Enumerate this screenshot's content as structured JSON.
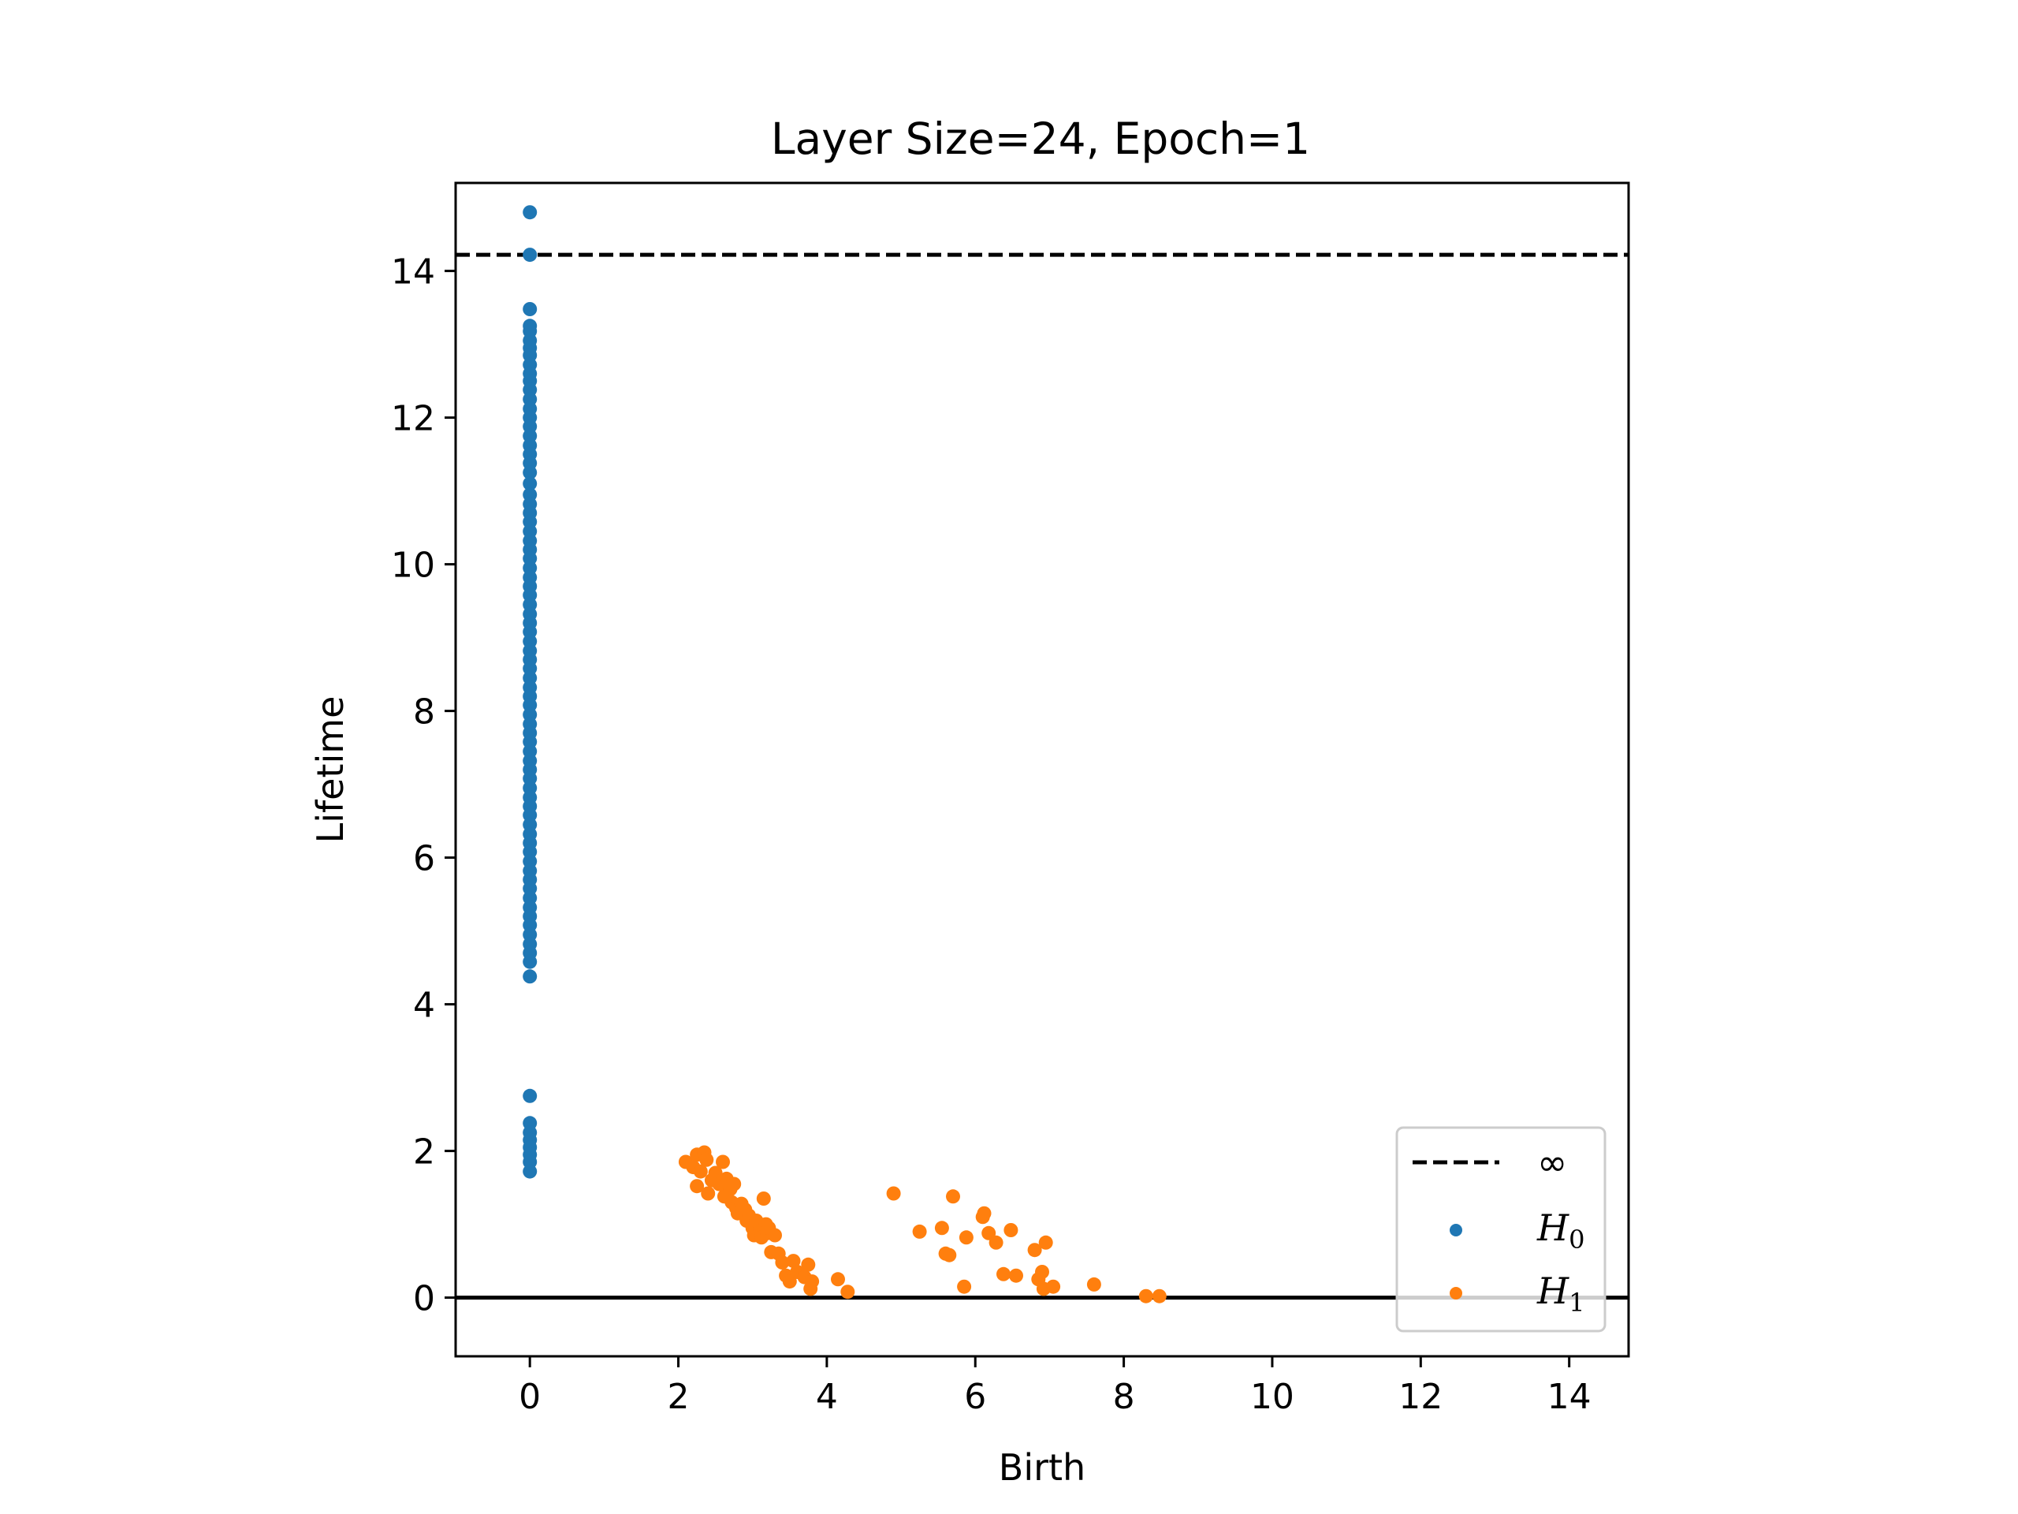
{
  "chart_data": {
    "type": "scatter",
    "title": "Layer Size=24, Epoch=1",
    "xlabel": "Birth",
    "ylabel": "Lifetime",
    "xlim": [
      -1.0,
      14.8
    ],
    "ylim": [
      -0.8,
      15.2
    ],
    "xticks": [
      0,
      2,
      4,
      6,
      8,
      10,
      12,
      14
    ],
    "yticks": [
      0,
      2,
      4,
      6,
      8,
      10,
      12,
      14
    ],
    "infinity_line": {
      "y": 14.22,
      "label": "∞",
      "style": "dashed",
      "color": "#000000"
    },
    "zero_line": {
      "y": 0,
      "style": "solid",
      "color": "#000000"
    },
    "legend": {
      "position": "lower-right",
      "entries": [
        {
          "label": "∞",
          "kind": "line"
        },
        {
          "label": "H",
          "subscript": "0",
          "kind": "point",
          "color": "#1f77b4"
        },
        {
          "label": "H",
          "subscript": "1",
          "kind": "point",
          "color": "#ff7f0e"
        }
      ]
    },
    "series": [
      {
        "name": "H0",
        "color": "#1f77b4",
        "points": [
          [
            0,
            14.8
          ],
          [
            0,
            14.22
          ],
          [
            0,
            13.48
          ],
          [
            0,
            13.25
          ],
          [
            0,
            13.18
          ],
          [
            0,
            13.05
          ],
          [
            0,
            12.95
          ],
          [
            0,
            12.85
          ],
          [
            0,
            12.72
          ],
          [
            0,
            12.6
          ],
          [
            0,
            12.5
          ],
          [
            0,
            12.38
          ],
          [
            0,
            12.25
          ],
          [
            0,
            12.12
          ],
          [
            0,
            12.0
          ],
          [
            0,
            11.88
          ],
          [
            0,
            11.75
          ],
          [
            0,
            11.62
          ],
          [
            0,
            11.5
          ],
          [
            0,
            11.38
          ],
          [
            0,
            11.25
          ],
          [
            0,
            11.1
          ],
          [
            0,
            10.95
          ],
          [
            0,
            10.82
          ],
          [
            0,
            10.7
          ],
          [
            0,
            10.58
          ],
          [
            0,
            10.45
          ],
          [
            0,
            10.32
          ],
          [
            0,
            10.2
          ],
          [
            0,
            10.08
          ],
          [
            0,
            9.95
          ],
          [
            0,
            9.82
          ],
          [
            0,
            9.7
          ],
          [
            0,
            9.58
          ],
          [
            0,
            9.45
          ],
          [
            0,
            9.32
          ],
          [
            0,
            9.2
          ],
          [
            0,
            9.08
          ],
          [
            0,
            8.95
          ],
          [
            0,
            8.82
          ],
          [
            0,
            8.7
          ],
          [
            0,
            8.58
          ],
          [
            0,
            8.45
          ],
          [
            0,
            8.32
          ],
          [
            0,
            8.2
          ],
          [
            0,
            8.08
          ],
          [
            0,
            7.95
          ],
          [
            0,
            7.82
          ],
          [
            0,
            7.7
          ],
          [
            0,
            7.58
          ],
          [
            0,
            7.45
          ],
          [
            0,
            7.32
          ],
          [
            0,
            7.2
          ],
          [
            0,
            7.08
          ],
          [
            0,
            6.95
          ],
          [
            0,
            6.82
          ],
          [
            0,
            6.7
          ],
          [
            0,
            6.58
          ],
          [
            0,
            6.45
          ],
          [
            0,
            6.32
          ],
          [
            0,
            6.2
          ],
          [
            0,
            6.08
          ],
          [
            0,
            5.95
          ],
          [
            0,
            5.82
          ],
          [
            0,
            5.7
          ],
          [
            0,
            5.58
          ],
          [
            0,
            5.45
          ],
          [
            0,
            5.32
          ],
          [
            0,
            5.2
          ],
          [
            0,
            5.08
          ],
          [
            0,
            4.95
          ],
          [
            0,
            4.82
          ],
          [
            0,
            4.7
          ],
          [
            0,
            4.58
          ],
          [
            0,
            4.38
          ],
          [
            0,
            2.75
          ],
          [
            0,
            2.38
          ],
          [
            0,
            2.25
          ],
          [
            0,
            2.15
          ],
          [
            0,
            2.05
          ],
          [
            0,
            1.95
          ],
          [
            0,
            1.85
          ],
          [
            0,
            1.72
          ]
        ]
      },
      {
        "name": "H1",
        "color": "#ff7f0e",
        "points": [
          [
            2.1,
            1.85
          ],
          [
            2.2,
            1.78
          ],
          [
            2.25,
            1.95
          ],
          [
            2.3,
            1.72
          ],
          [
            2.35,
            1.98
          ],
          [
            2.38,
            1.88
          ],
          [
            2.25,
            1.52
          ],
          [
            2.4,
            1.42
          ],
          [
            2.45,
            1.6
          ],
          [
            2.5,
            1.7
          ],
          [
            2.55,
            1.55
          ],
          [
            2.6,
            1.85
          ],
          [
            2.62,
            1.38
          ],
          [
            2.65,
            1.62
          ],
          [
            2.7,
            1.48
          ],
          [
            2.72,
            1.3
          ],
          [
            2.75,
            1.55
          ],
          [
            2.78,
            1.22
          ],
          [
            2.8,
            1.15
          ],
          [
            2.85,
            1.28
          ],
          [
            2.9,
            1.2
          ],
          [
            2.92,
            1.05
          ],
          [
            2.95,
            1.12
          ],
          [
            3.0,
            0.95
          ],
          [
            3.02,
            0.85
          ],
          [
            3.05,
            1.05
          ],
          [
            3.1,
            0.92
          ],
          [
            3.12,
            0.82
          ],
          [
            3.15,
            1.35
          ],
          [
            3.18,
            1.0
          ],
          [
            3.2,
            0.88
          ],
          [
            3.22,
            0.95
          ],
          [
            3.25,
            0.62
          ],
          [
            3.3,
            0.85
          ],
          [
            3.35,
            0.6
          ],
          [
            3.4,
            0.48
          ],
          [
            3.45,
            0.3
          ],
          [
            3.5,
            0.22
          ],
          [
            3.55,
            0.5
          ],
          [
            3.6,
            0.35
          ],
          [
            3.7,
            0.28
          ],
          [
            3.75,
            0.45
          ],
          [
            3.78,
            0.12
          ],
          [
            3.8,
            0.22
          ],
          [
            4.15,
            0.25
          ],
          [
            4.28,
            0.08
          ],
          [
            4.9,
            1.42
          ],
          [
            5.25,
            0.9
          ],
          [
            5.55,
            0.95
          ],
          [
            5.6,
            0.6
          ],
          [
            5.65,
            0.58
          ],
          [
            5.7,
            1.38
          ],
          [
            5.85,
            0.15
          ],
          [
            5.88,
            0.82
          ],
          [
            6.1,
            1.1
          ],
          [
            6.12,
            1.15
          ],
          [
            6.18,
            0.88
          ],
          [
            6.28,
            0.75
          ],
          [
            6.38,
            0.32
          ],
          [
            6.48,
            0.92
          ],
          [
            6.55,
            0.3
          ],
          [
            6.8,
            0.65
          ],
          [
            6.85,
            0.25
          ],
          [
            6.9,
            0.35
          ],
          [
            6.92,
            0.12
          ],
          [
            6.95,
            0.75
          ],
          [
            7.05,
            0.15
          ],
          [
            7.6,
            0.18
          ],
          [
            8.3,
            0.02
          ],
          [
            8.48,
            0.02
          ]
        ]
      }
    ]
  }
}
